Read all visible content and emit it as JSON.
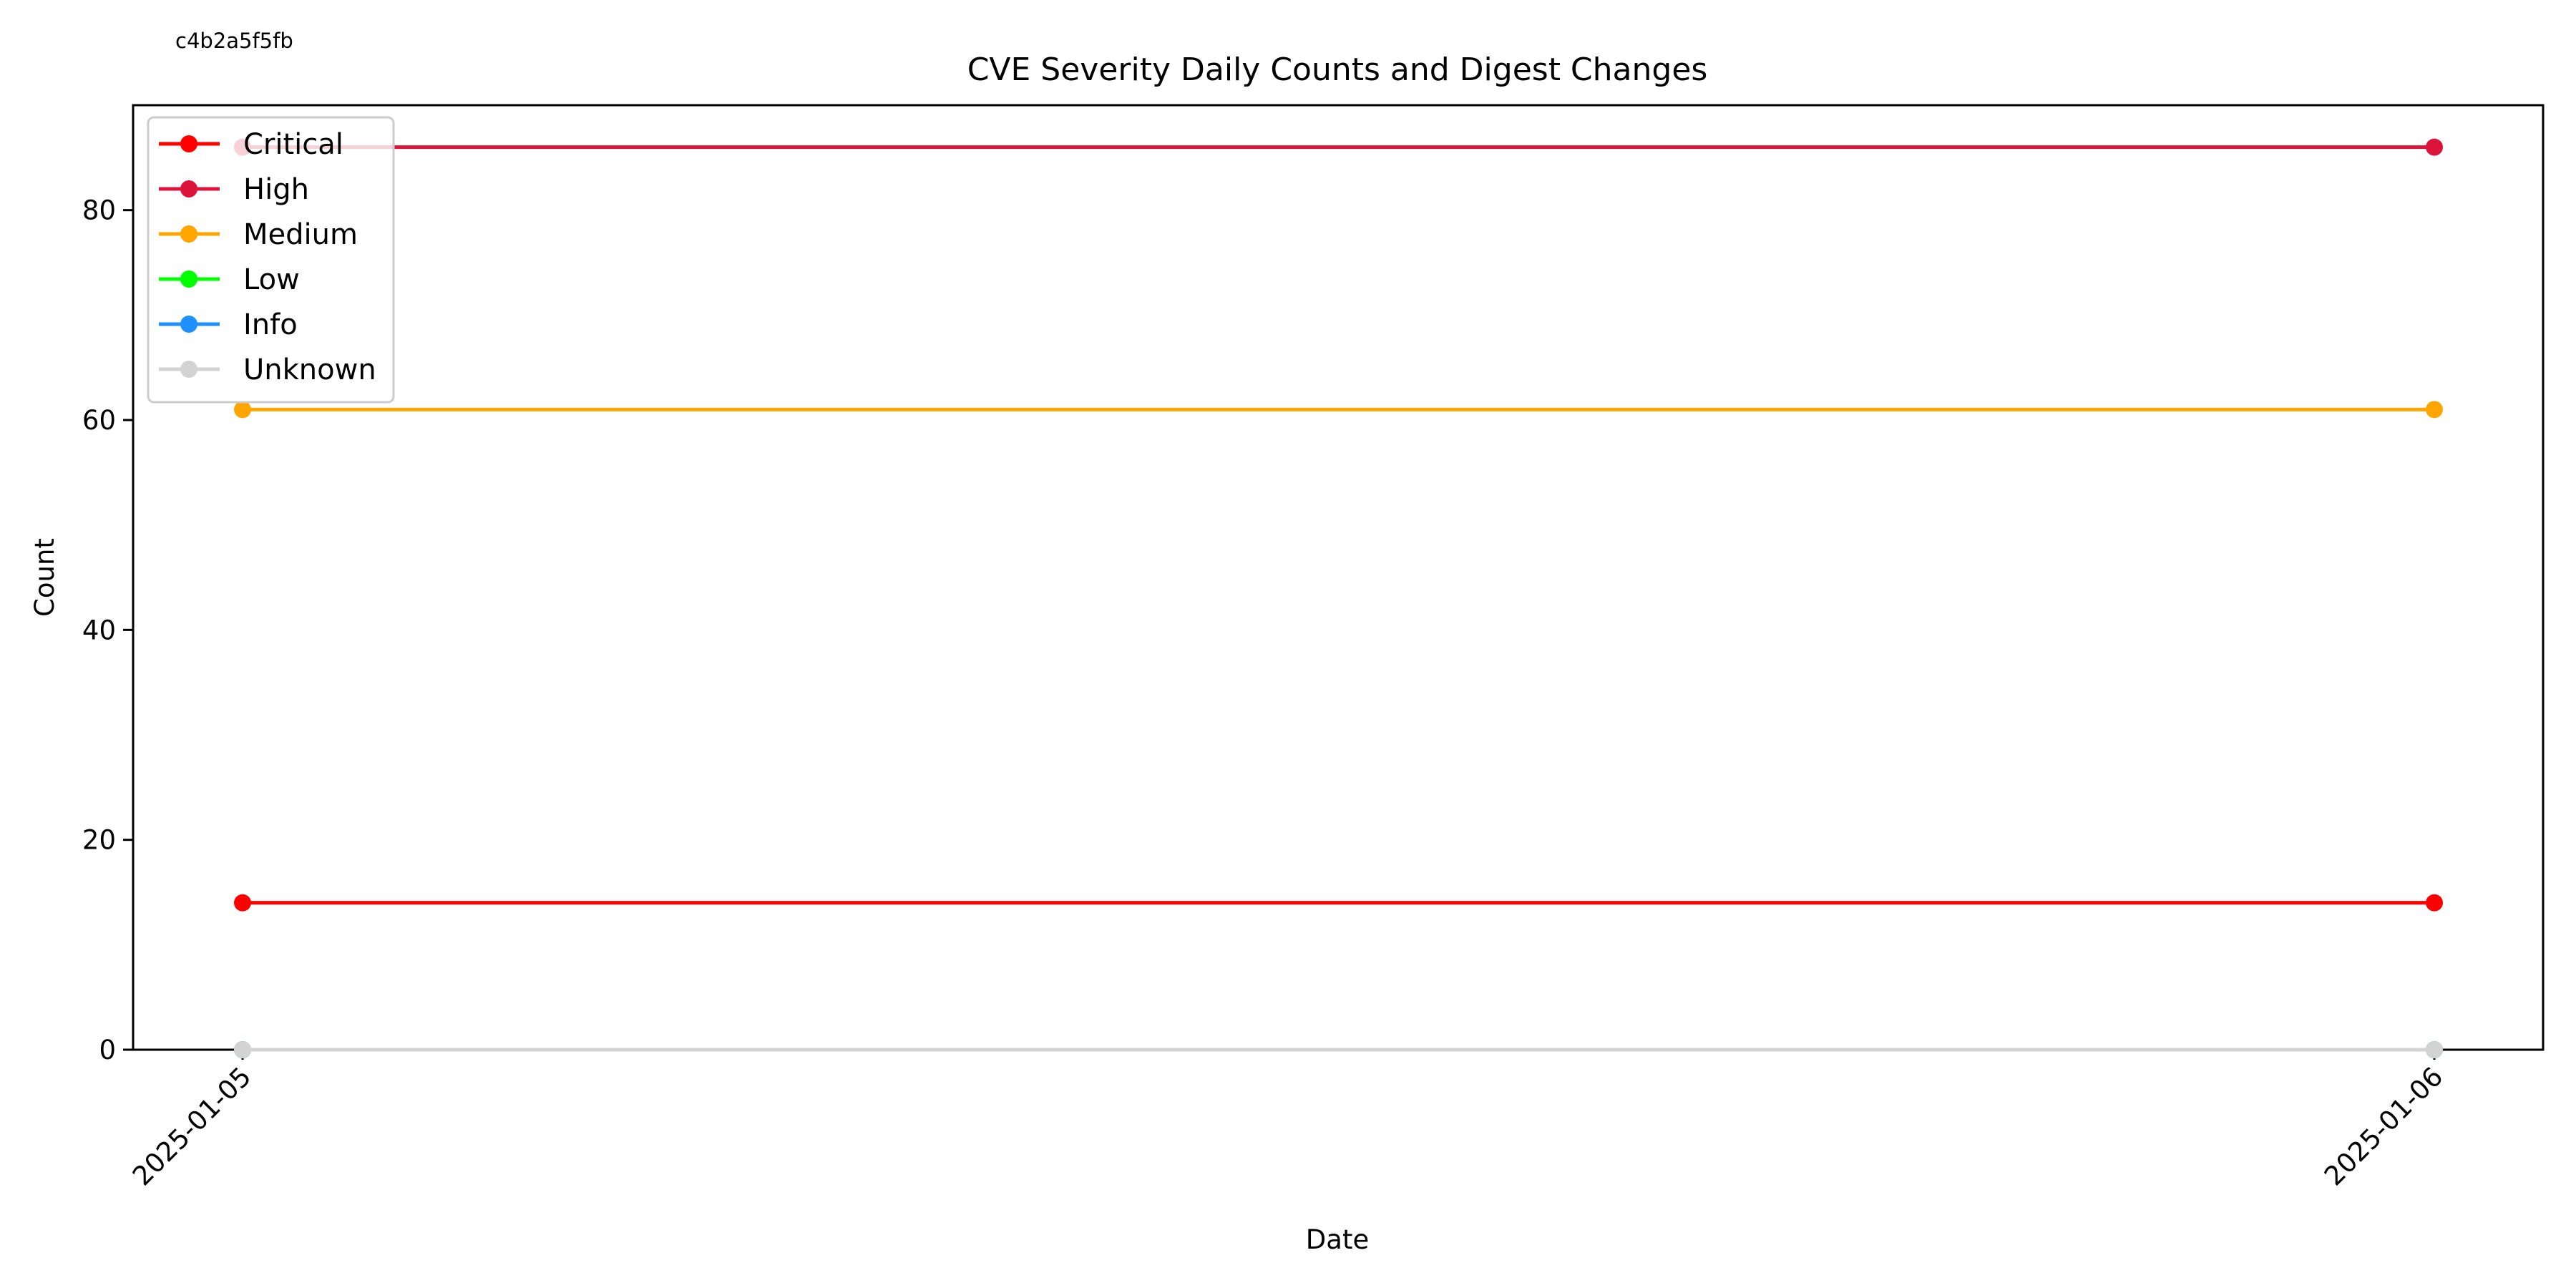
{
  "annotation": "c4b2a5f5fb",
  "chart_data": {
    "type": "line",
    "title": "CVE Severity Daily Counts and Digest Changes",
    "xlabel": "Date",
    "ylabel": "Count",
    "x": [
      "2025-01-05",
      "2025-01-06"
    ],
    "ylim": [
      0,
      90
    ],
    "yticks": [
      0,
      20,
      40,
      60,
      80
    ],
    "grid": false,
    "legend_position": "upper-left",
    "series": [
      {
        "name": "Critical",
        "color": "#ff0000",
        "values": [
          14,
          14
        ]
      },
      {
        "name": "High",
        "color": "#dc143c",
        "values": [
          86,
          86
        ]
      },
      {
        "name": "Medium",
        "color": "#ffa500",
        "values": [
          61,
          61
        ]
      },
      {
        "name": "Low",
        "color": "#00ff00",
        "values": [
          0,
          0
        ]
      },
      {
        "name": "Info",
        "color": "#1e90ff",
        "values": [
          0,
          0
        ]
      },
      {
        "name": "Unknown",
        "color": "#d3d3d3",
        "values": [
          0,
          0
        ]
      }
    ]
  }
}
